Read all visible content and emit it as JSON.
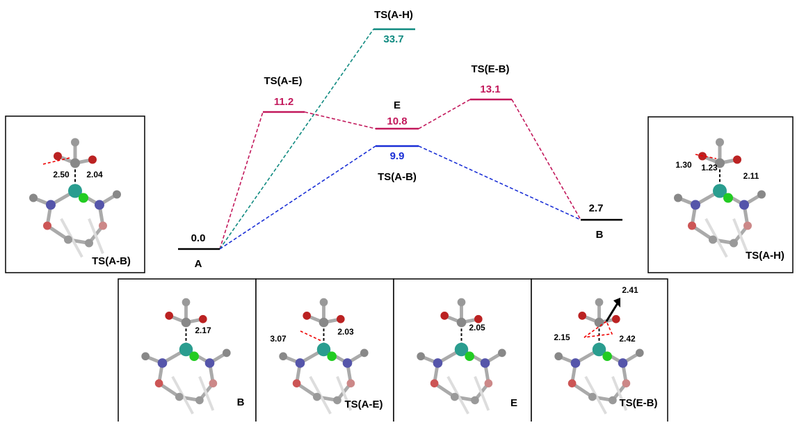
{
  "levels": [
    {
      "label": "A",
      "energy": "0.0"
    },
    {
      "label": "TS(A-E)",
      "energy": "11.2"
    },
    {
      "label": "TS(A-H)",
      "energy": "33.7"
    },
    {
      "label": "E",
      "energy": "10.8"
    },
    {
      "label": "TS(A-B)",
      "energy": "9.9"
    },
    {
      "label": "TS(E-B)",
      "energy": "13.1"
    },
    {
      "label": "B",
      "energy": "2.7"
    }
  ],
  "structures": [
    {
      "name": "TS(A-B)",
      "distances": [
        "2.50",
        "2.04"
      ]
    },
    {
      "name": "TS(A-H)",
      "distances": [
        "1.30",
        "1.23",
        "2.11"
      ]
    },
    {
      "name": "B",
      "distances": [
        "2.17"
      ]
    },
    {
      "name": "TS(A-E)",
      "distances": [
        "3.07",
        "2.03"
      ]
    },
    {
      "name": "E",
      "distances": [
        "2.05"
      ]
    },
    {
      "name": "TS(E-B)",
      "distances": [
        "2.41",
        "2.15",
        "2.42"
      ]
    }
  ]
}
